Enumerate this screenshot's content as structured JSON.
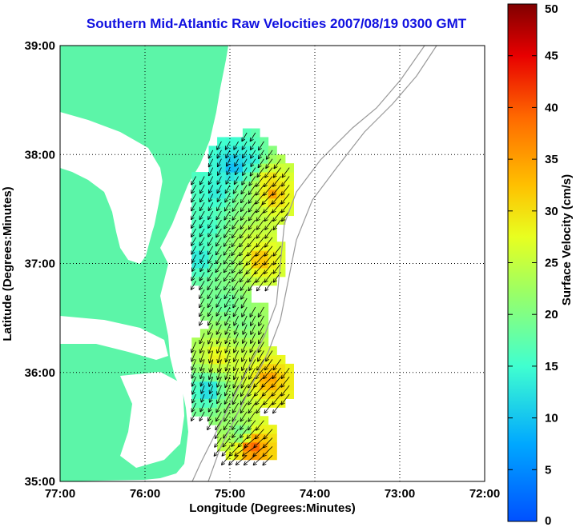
{
  "chart_data": {
    "type": "scatter",
    "title": "Southern Mid-Atlantic Raw Velocities 2007/08/19 0300 GMT",
    "xlabel": "Longitude (Degrees:Minutes)",
    "ylabel": "Latitude (Degrees:Minutes)",
    "xlim": [
      -77,
      -72
    ],
    "ylim": [
      35,
      39
    ],
    "x_ticks": [
      {
        "v": -77,
        "label": "77:00"
      },
      {
        "v": -76,
        "label": "76:00"
      },
      {
        "v": -75,
        "label": "75:00"
      },
      {
        "v": -74,
        "label": "74:00"
      },
      {
        "v": -73,
        "label": "73:00"
      },
      {
        "v": -72,
        "label": "72:00"
      }
    ],
    "y_ticks": [
      {
        "v": 35,
        "label": "35:00"
      },
      {
        "v": 36,
        "label": "36:00"
      },
      {
        "v": 37,
        "label": "37:00"
      },
      {
        "v": 38,
        "label": "38:00"
      },
      {
        "v": 39,
        "label": "39:00"
      }
    ],
    "grid": true,
    "colorbar": {
      "label": "Surface Velocity (cm/s)",
      "min": 0,
      "max": 50,
      "ticks": [
        0,
        5,
        10,
        15,
        20,
        25,
        30,
        35,
        40,
        45,
        50
      ],
      "colormap": "jet"
    },
    "land_color": "#5cf5a8",
    "velocity_field": [
      {
        "lon": -75.0,
        "lat": 37.85,
        "speed": 6,
        "dir": 200
      },
      {
        "lon": -74.8,
        "lat": 37.9,
        "speed": 11,
        "dir": 210
      },
      {
        "lon": -74.6,
        "lat": 37.75,
        "speed": 32,
        "dir": 220
      },
      {
        "lon": -74.55,
        "lat": 37.6,
        "speed": 36,
        "dir": 225
      },
      {
        "lon": -74.9,
        "lat": 37.5,
        "speed": 20,
        "dir": 215
      },
      {
        "lon": -75.2,
        "lat": 37.6,
        "speed": 12,
        "dir": 205
      },
      {
        "lon": -75.3,
        "lat": 37.3,
        "speed": 14,
        "dir": 210
      },
      {
        "lon": -74.8,
        "lat": 37.2,
        "speed": 26,
        "dir": 220
      },
      {
        "lon": -74.7,
        "lat": 37.0,
        "speed": 36,
        "dir": 225
      },
      {
        "lon": -75.1,
        "lat": 36.9,
        "speed": 20,
        "dir": 215
      },
      {
        "lon": -75.4,
        "lat": 37.0,
        "speed": 11,
        "dir": 205
      },
      {
        "lon": -75.1,
        "lat": 36.6,
        "speed": 17,
        "dir": 210
      },
      {
        "lon": -74.9,
        "lat": 36.4,
        "speed": 19,
        "dir": 200
      },
      {
        "lon": -75.2,
        "lat": 36.1,
        "speed": 31,
        "dir": 190
      },
      {
        "lon": -74.9,
        "lat": 36.0,
        "speed": 26,
        "dir": 200
      },
      {
        "lon": -74.6,
        "lat": 35.9,
        "speed": 37,
        "dir": 230
      },
      {
        "lon": -75.3,
        "lat": 35.8,
        "speed": 8,
        "dir": 200
      },
      {
        "lon": -75.0,
        "lat": 35.65,
        "speed": 22,
        "dir": 210
      },
      {
        "lon": -74.9,
        "lat": 35.4,
        "speed": 14,
        "dir": 215
      },
      {
        "lon": -74.8,
        "lat": 35.3,
        "speed": 45,
        "dir": 240
      }
    ]
  }
}
